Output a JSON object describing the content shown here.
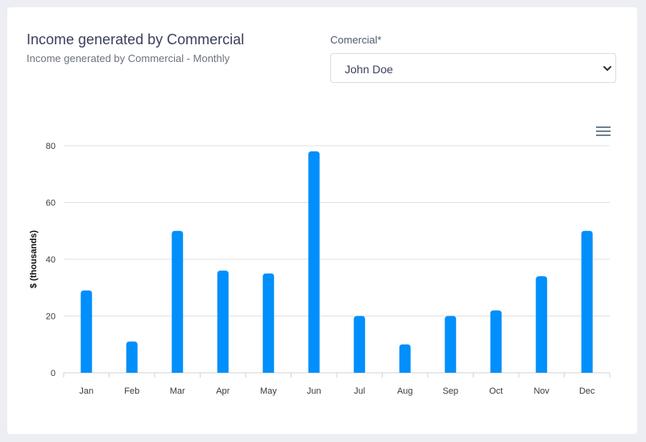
{
  "header": {
    "title": "Income generated by Commercial",
    "subtitle": "Income generated by Commercial - Monthly"
  },
  "filter": {
    "label": "Comercial*",
    "selected": "John Doe"
  },
  "icons": {
    "menu": "hamburger-menu-icon",
    "select_arrow": "chevron-down-icon"
  },
  "colors": {
    "bar": "#008ffb",
    "grid": "#e0e0e0"
  },
  "chart_data": {
    "type": "bar",
    "title": "",
    "xlabel": "",
    "ylabel": "$ (thousands)",
    "ylim": [
      0,
      80
    ],
    "yticks": [
      0,
      20,
      40,
      60,
      80
    ],
    "grid": true,
    "categories": [
      "Jan",
      "Feb",
      "Mar",
      "Apr",
      "May",
      "Jun",
      "Jul",
      "Aug",
      "Sep",
      "Oct",
      "Nov",
      "Dec"
    ],
    "values": [
      29,
      11,
      50,
      36,
      35,
      78,
      20,
      10,
      20,
      22,
      34,
      50
    ]
  }
}
